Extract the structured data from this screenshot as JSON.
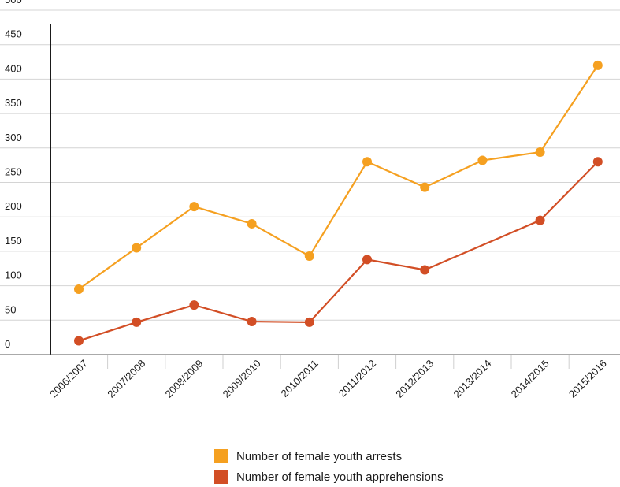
{
  "chart_data": {
    "type": "line",
    "categories": [
      "2006/2007",
      "2007/2008",
      "2008/2009",
      "2009/2010",
      "2010/2011",
      "2011/2012",
      "2012/2013",
      "2013/2014",
      "2014/2015",
      "2015/2016"
    ],
    "y_ticks": [
      "0",
      "50",
      "100",
      "150",
      "200",
      "250",
      "300",
      "350",
      "400",
      "450",
      "500"
    ],
    "ylim": [
      0,
      500
    ],
    "grid": true,
    "legend_position": "bottom",
    "series": [
      {
        "name": "Number of female youth arrests",
        "color": "#f5a020",
        "values": [
          95,
          155,
          215,
          190,
          143,
          280,
          243,
          282,
          294,
          420
        ]
      },
      {
        "name": "Number of female youth apprehensions",
        "color": "#d24e25",
        "points": [
          {
            "x": "2006/2007",
            "y": 20
          },
          {
            "x": "2007/2008",
            "y": 47
          },
          {
            "x": "2008/2009",
            "y": 72
          },
          {
            "x": "2009/2010",
            "y": 48
          },
          {
            "x": "2010/2011",
            "y": 47
          },
          {
            "x": "2011/2012",
            "y": 138
          },
          {
            "x": "2012/2013",
            "y": 123
          },
          {
            "x": "2014/2015",
            "y": 195
          },
          {
            "x": "2015/2016",
            "y": 280
          }
        ]
      }
    ]
  }
}
